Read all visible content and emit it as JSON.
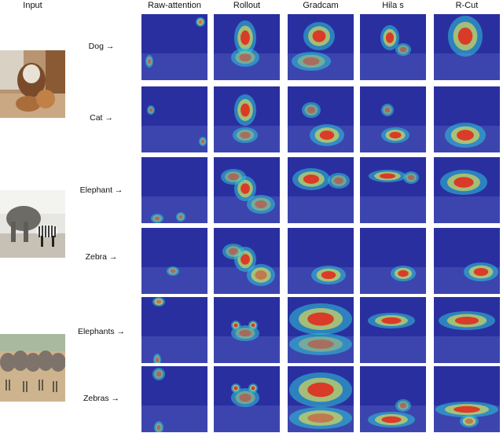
{
  "headers": {
    "input": "Input",
    "methods": [
      "Raw-attention",
      "Rollout",
      "Gradcam",
      "Hila s",
      "R-Cut"
    ]
  },
  "scenes": [
    {
      "name": "dog-cat",
      "rows": [
        {
          "label": "Dog →"
        },
        {
          "label": "Cat →"
        }
      ]
    },
    {
      "name": "elephant-zebra",
      "rows": [
        {
          "label": "Elephant →"
        },
        {
          "label": "Zebra →"
        }
      ]
    },
    {
      "name": "herd",
      "rows": [
        {
          "label": "Elephants →"
        },
        {
          "label": "Zebras →"
        }
      ]
    }
  ],
  "colors": {
    "jet_low": "#2a2fa0",
    "jet_mid": "#2ec6d8",
    "jet_high": "#e4231a",
    "heat_yellow": "#f2e64a"
  }
}
